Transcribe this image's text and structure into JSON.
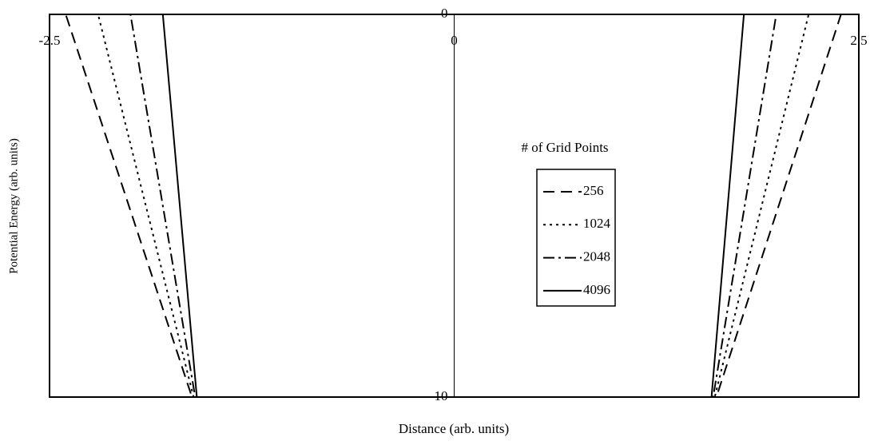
{
  "chart_data": {
    "type": "line",
    "xlabel": "Distance (arb. units)",
    "ylabel": "Potential Energy (arb. units)",
    "legend_title": "# of Grid Points",
    "xlim": [
      -2.5,
      2.5
    ],
    "xticks": [
      -2.5,
      0,
      2.5
    ],
    "ylim": [
      -10,
      0
    ],
    "yticks": [
      0,
      -10
    ],
    "series": [
      {
        "name": "256",
        "color": "#000000",
        "dash": "dashed",
        "x": [
          -2.5,
          -2.4,
          -1.62,
          1.62,
          2.39,
          2.5
        ],
        "values": [
          0,
          0,
          -10,
          -10,
          0,
          0
        ]
      },
      {
        "name": "1024",
        "color": "#000000",
        "dash": "dotted",
        "x": [
          -2.5,
          -2.2,
          -1.61,
          1.61,
          2.19,
          2.5
        ],
        "values": [
          0,
          0,
          -10,
          -10,
          0,
          0
        ]
      },
      {
        "name": "2048",
        "color": "#000000",
        "dash": "dashdot",
        "x": [
          -2.5,
          -2.0,
          -1.6,
          1.6,
          1.99,
          2.5
        ],
        "values": [
          0,
          0,
          -10,
          -10,
          0,
          0
        ]
      },
      {
        "name": "4096",
        "color": "#000000",
        "dash": "solid",
        "x": [
          -2.5,
          -1.8,
          -1.59,
          1.59,
          1.79,
          2.5
        ],
        "values": [
          0,
          0,
          -10,
          -10,
          0,
          0
        ]
      }
    ]
  }
}
